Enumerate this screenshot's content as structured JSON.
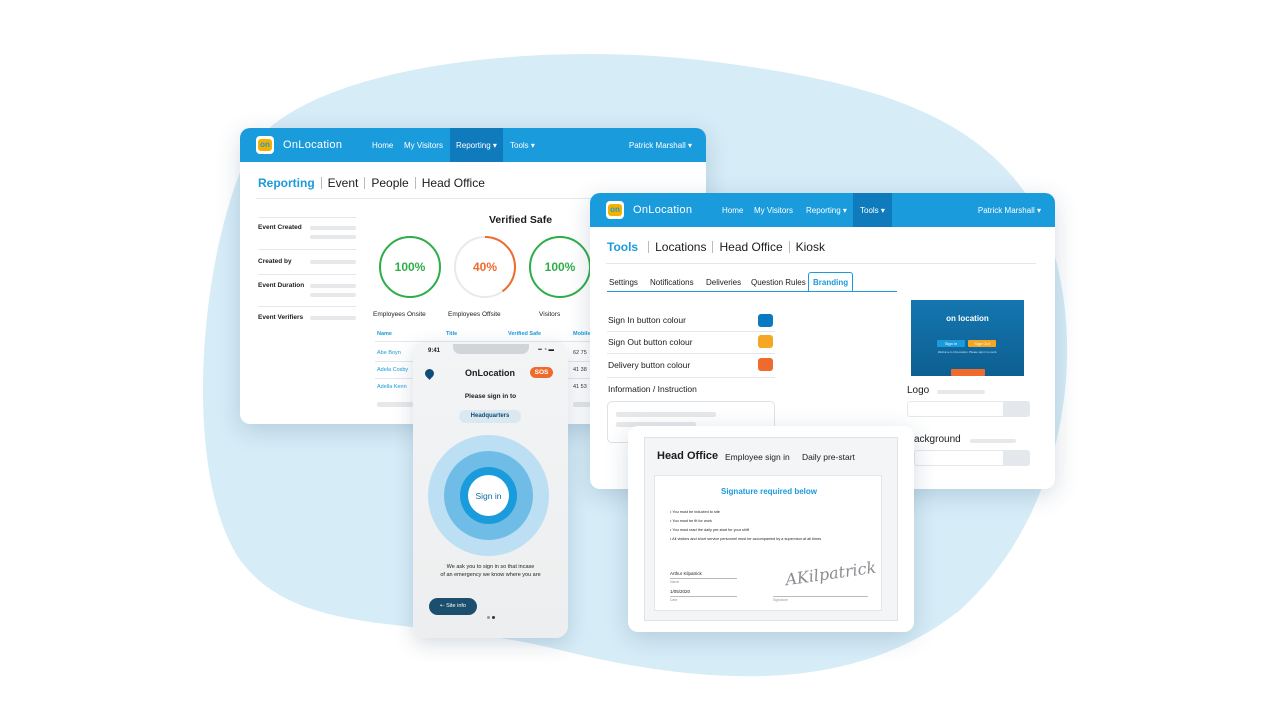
{
  "colors": {
    "accent": "#1a9bdc",
    "nav_active": "#0f7bbd",
    "green": "#2eae49",
    "orange": "#ee6b2d",
    "blob": "#d6ecf7",
    "sign_in_swatch": "#0b78c2",
    "sign_out_swatch": "#f5a623",
    "delivery_swatch": "#ee6b2d"
  },
  "reporting_window": {
    "brand": "OnLocation",
    "logo_text": "on",
    "nav": [
      "Home",
      "My Visitors",
      "Reporting ▾",
      "Tools ▾"
    ],
    "user": "Patrick Marshall ▾",
    "breadcrumbs": [
      "Reporting",
      "Event",
      "People",
      "Head Office"
    ],
    "meta_labels": [
      "Event Created",
      "Created by",
      "Event Duration",
      "Event Verifiers"
    ],
    "chart_title": "Verified Safe",
    "rings": [
      {
        "value": "100%",
        "label": "Employees Onsite",
        "fraction": 1.0,
        "color": "green"
      },
      {
        "value": "40%",
        "label": "Employees Offsite",
        "fraction": 0.4,
        "color": "orange"
      },
      {
        "value": "100%",
        "label": "Visitors",
        "fraction": 1.0,
        "color": "green"
      }
    ],
    "table": {
      "headers": [
        "Name",
        "Title",
        "Verified Safe",
        "Mobile"
      ],
      "names": [
        "Abe Boyn",
        "Adela Cosby",
        "Adella Kenn"
      ],
      "mobiles": [
        "62 75",
        "41 38",
        "41 53"
      ]
    }
  },
  "tools_window": {
    "brand": "OnLocation",
    "logo_text": "on",
    "nav": [
      "Home",
      "My Visitors",
      "Reporting ▾",
      "Tools ▾"
    ],
    "user": "Patrick Marshall ▾",
    "breadcrumbs": [
      "Tools",
      "Locations",
      "Head Office",
      "Kiosk"
    ],
    "tabs": [
      "Settings",
      "Notifications",
      "Deliveries",
      "Question Rules",
      "Branding"
    ],
    "settings": [
      "Sign In button colour",
      "Sign Out button colour",
      "Delivery button colour",
      "Information / Instruction"
    ],
    "preview_logo": "on location",
    "preview_buttons": [
      "Sign in",
      "Sign Out"
    ],
    "preview_welcome": "Welcome to OnLocation. Please sign in to work.",
    "logo_label": "Logo",
    "background_label": "ackground"
  },
  "phone": {
    "time": "9:41",
    "status_icons": "▪▪ ◔ ▬",
    "title": "OnLocation",
    "sos": "SOS",
    "prompt": "Please sign in to",
    "location": "Headquarters",
    "sign_in": "Sign in",
    "note_line1": "We ask you to sign in so that incase",
    "note_line2": "of an emergency we know where you are",
    "site_info": "⇠ Site info"
  },
  "kiosk": {
    "location": "Head Office",
    "tabs": [
      "Employee sign in",
      "Daily pre-start"
    ],
    "heading": "Signature required below",
    "rules": [
      "• You must be inducted to site",
      "• You must be fit for work",
      "• You must read the daily pre-start for your shift",
      "• All visitors and short service personnel must be accompanied by a supervisor at all times"
    ],
    "signer_name": "Arthur Kilpatrick",
    "name_caption": "Name",
    "date_value": "1/05/2020",
    "date_caption": "Date",
    "signature_caption": "Signature",
    "signature_text": "AKilpatrick"
  }
}
